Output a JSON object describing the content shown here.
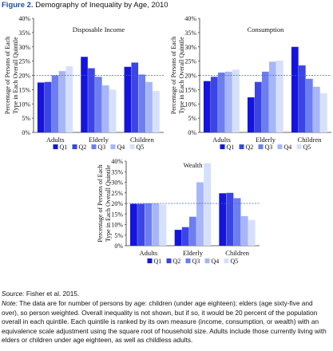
{
  "figure": {
    "label": "Figure 2.",
    "title": "Demography of Inequality by Age, 2010"
  },
  "colors": [
    "#1414dc",
    "#3b45e6",
    "#6d7ef0",
    "#a6b6f8",
    "#d6e0fb"
  ],
  "reference_line_color": "#4a5fd0",
  "chart_data": [
    {
      "type": "bar",
      "title": "Disposable Income",
      "ylabel": "Percentage of Persons of Each Type in Each Overall Quintile",
      "xlabel": "",
      "ylim": [
        0,
        40
      ],
      "yticks": [
        "0%",
        "5%",
        "10%",
        "15%",
        "20%",
        "25%",
        "30%",
        "35%",
        "40%"
      ],
      "reference_line": 20,
      "categories": [
        "Adults",
        "Elderly",
        "Children"
      ],
      "legend": [
        "Q1",
        "Q2",
        "Q3",
        "Q4",
        "Q5"
      ],
      "series": [
        {
          "name": "Q1",
          "values": [
            17.5,
            26.5,
            23
          ]
        },
        {
          "name": "Q2",
          "values": [
            17.7,
            22.5,
            24.5
          ]
        },
        {
          "name": "Q3",
          "values": [
            20,
            19.5,
            20.3
          ]
        },
        {
          "name": "Q4",
          "values": [
            21.5,
            16.5,
            17.7
          ]
        },
        {
          "name": "Q5",
          "values": [
            23.2,
            15,
            14.5
          ]
        }
      ]
    },
    {
      "type": "bar",
      "title": "Consumption",
      "ylabel": "Percentage of Persons of Each Type in Each Overall Quintile",
      "xlabel": "",
      "ylim": [
        0,
        40
      ],
      "yticks": [
        "0%",
        "5%",
        "10%",
        "15%",
        "20%",
        "25%",
        "30%",
        "35%",
        "40%"
      ],
      "reference_line": 20,
      "categories": [
        "Adults",
        "Elderly",
        "Children"
      ],
      "legend": [
        "Q1",
        "Q2",
        "Q3",
        "Q4",
        "Q5"
      ],
      "series": [
        {
          "name": "Q1",
          "values": [
            18,
            12.3,
            30
          ]
        },
        {
          "name": "Q2",
          "values": [
            19.5,
            17.7,
            23.5
          ]
        },
        {
          "name": "Q3",
          "values": [
            21,
            21.3,
            18.8
          ]
        },
        {
          "name": "Q4",
          "values": [
            21.3,
            24.8,
            16
          ]
        },
        {
          "name": "Q5",
          "values": [
            22,
            25.2,
            13.7
          ]
        }
      ]
    },
    {
      "type": "bar",
      "title": "Wealth",
      "ylabel": "Percentage of Persons of Each Type in Each Overall Quintile",
      "xlabel": "",
      "ylim": [
        0,
        40
      ],
      "yticks": [
        "0%",
        "5%",
        "10%",
        "15%",
        "20%",
        "25%",
        "30%",
        "35%",
        "40%"
      ],
      "reference_line": 20,
      "categories": [
        "Adults",
        "Elderly",
        "Children"
      ],
      "legend": [
        "Q1",
        "Q2",
        "Q3",
        "Q4",
        "Q5"
      ],
      "series": [
        {
          "name": "Q1",
          "values": [
            19.8,
            7.5,
            24.8
          ]
        },
        {
          "name": "Q2",
          "values": [
            19.8,
            8.8,
            25
          ]
        },
        {
          "name": "Q3",
          "values": [
            20,
            13.7,
            22.5
          ]
        },
        {
          "name": "Q4",
          "values": [
            20,
            30,
            14
          ]
        },
        {
          "name": "Q5",
          "values": [
            19.5,
            39,
            12.2
          ]
        }
      ]
    }
  ],
  "source": {
    "label": "Source:",
    "text": "Fisher et al. 2015."
  },
  "note": {
    "label": "Note:",
    "text": "The data are for number of persons by age: children (under age eighteen); elders (age sixty-five and over), so person weighted. Overall inequality is not shown, but if so, it would be 20 percent of the population overall in each quintile. Each quintile is ranked by its own measure (income, consumption, or wealth) with an equivalence scale adjustment using the square root of household size. Adults include those currently living with elders or children under age eighteen, as well as childless adults."
  }
}
